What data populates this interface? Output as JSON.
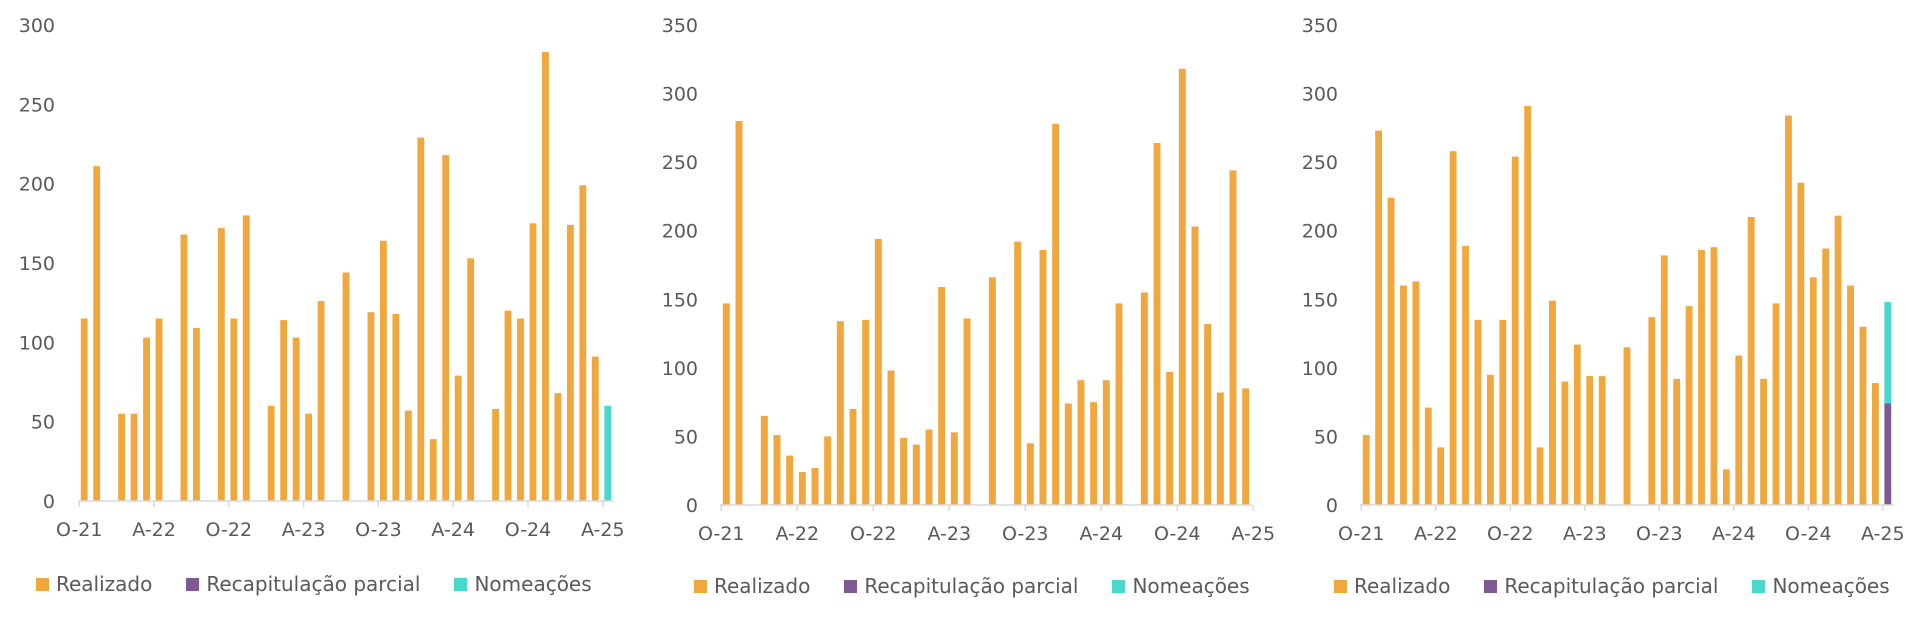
{
  "colors": {
    "realizado": "#f0a83e",
    "recapitulacao": "#7e5a94",
    "nomeacoes": "#48d8cd",
    "axis": "#d9d9d9",
    "text": "#595959"
  },
  "legend_labels": {
    "realizado": "Realizado",
    "recapitulacao": "Recapitulação parcial",
    "nomeacoes": "Nomeações"
  },
  "chart_data": [
    {
      "type": "bar",
      "stacked": true,
      "x_tick_labels": [
        "O-21",
        "A-22",
        "O-22",
        "A-23",
        "O-23",
        "A-24",
        "O-24",
        "A-25"
      ],
      "ylim": [
        0,
        300
      ],
      "y_ticks": [
        0,
        50,
        100,
        150,
        200,
        250,
        300
      ],
      "legend": [
        "Realizado",
        "Recapitulação parcial",
        "Nomeações"
      ],
      "legend_position": "bottom",
      "series": [
        {
          "name": "Realizado",
          "values": [
            115,
            211,
            0,
            55,
            55,
            103,
            115,
            0,
            168,
            109,
            0,
            172,
            115,
            180,
            0,
            60,
            114,
            103,
            55,
            126,
            0,
            144,
            0,
            119,
            164,
            118,
            57,
            229,
            39,
            218,
            79,
            153,
            0,
            58,
            120,
            115,
            175,
            283,
            68,
            174,
            199,
            91,
            0
          ]
        },
        {
          "name": "Recapitulação parcial",
          "values": [
            0,
            0,
            0,
            0,
            0,
            0,
            0,
            0,
            0,
            0,
            0,
            0,
            0,
            0,
            0,
            0,
            0,
            0,
            0,
            0,
            0,
            0,
            0,
            0,
            0,
            0,
            0,
            0,
            0,
            0,
            0,
            0,
            0,
            0,
            0,
            0,
            0,
            0,
            0,
            0,
            0,
            0,
            0
          ]
        },
        {
          "name": "Nomeações",
          "values": [
            0,
            0,
            0,
            0,
            0,
            0,
            0,
            0,
            0,
            0,
            0,
            0,
            0,
            0,
            0,
            0,
            0,
            0,
            0,
            0,
            0,
            0,
            0,
            0,
            0,
            0,
            0,
            0,
            0,
            0,
            0,
            0,
            0,
            0,
            0,
            0,
            0,
            0,
            0,
            0,
            0,
            0,
            60
          ]
        }
      ]
    },
    {
      "type": "bar",
      "stacked": true,
      "x_tick_labels": [
        "O-21",
        "A-22",
        "O-22",
        "A-23",
        "O-23",
        "A-24",
        "O-24",
        "A-25"
      ],
      "ylim": [
        0,
        350
      ],
      "y_ticks": [
        0,
        50,
        100,
        150,
        200,
        250,
        300,
        350
      ],
      "legend": [
        "Realizado",
        "Recapitulação parcial",
        "Nomeações"
      ],
      "legend_position": "bottom",
      "series": [
        {
          "name": "Realizado",
          "values": [
            147,
            280,
            0,
            65,
            51,
            36,
            24,
            27,
            50,
            134,
            70,
            135,
            194,
            98,
            49,
            44,
            55,
            159,
            53,
            136,
            0,
            166,
            0,
            192,
            45,
            186,
            278,
            74,
            91,
            75,
            91,
            147,
            0,
            155,
            264,
            97,
            318,
            203,
            132,
            82,
            244,
            85
          ]
        },
        {
          "name": "Recapitulação parcial",
          "values": [
            0,
            0,
            0,
            0,
            0,
            0,
            0,
            0,
            0,
            0,
            0,
            0,
            0,
            0,
            0,
            0,
            0,
            0,
            0,
            0,
            0,
            0,
            0,
            0,
            0,
            0,
            0,
            0,
            0,
            0,
            0,
            0,
            0,
            0,
            0,
            0,
            0,
            0,
            0,
            0,
            0,
            0
          ]
        },
        {
          "name": "Nomeações",
          "values": [
            0,
            0,
            0,
            0,
            0,
            0,
            0,
            0,
            0,
            0,
            0,
            0,
            0,
            0,
            0,
            0,
            0,
            0,
            0,
            0,
            0,
            0,
            0,
            0,
            0,
            0,
            0,
            0,
            0,
            0,
            0,
            0,
            0,
            0,
            0,
            0,
            0,
            0,
            0,
            0,
            0,
            0
          ]
        }
      ]
    },
    {
      "type": "bar",
      "stacked": true,
      "x_tick_labels": [
        "O-21",
        "A-22",
        "O-22",
        "A-23",
        "O-23",
        "A-24",
        "O-24",
        "A-25"
      ],
      "ylim": [
        0,
        350
      ],
      "y_ticks": [
        0,
        50,
        100,
        150,
        200,
        250,
        300,
        350
      ],
      "legend": [
        "Realizado",
        "Recapitulação parcial",
        "Nomeações"
      ],
      "legend_position": "bottom",
      "series": [
        {
          "name": "Realizado",
          "values": [
            51,
            273,
            224,
            160,
            163,
            71,
            42,
            258,
            189,
            135,
            95,
            135,
            254,
            291,
            42,
            149,
            90,
            117,
            94,
            94,
            0,
            115,
            0,
            137,
            182,
            92,
            145,
            186,
            188,
            26,
            109,
            210,
            92,
            147,
            284,
            235,
            166,
            187,
            211,
            160,
            130,
            89,
            0
          ]
        },
        {
          "name": "Recapitulação parcial",
          "values": [
            0,
            0,
            0,
            0,
            0,
            0,
            0,
            0,
            0,
            0,
            0,
            0,
            0,
            0,
            0,
            0,
            0,
            0,
            0,
            0,
            0,
            0,
            0,
            0,
            0,
            0,
            0,
            0,
            0,
            0,
            0,
            0,
            0,
            0,
            0,
            0,
            0,
            0,
            0,
            0,
            0,
            0,
            74
          ]
        },
        {
          "name": "Nomeações",
          "values": [
            0,
            0,
            0,
            0,
            0,
            0,
            0,
            0,
            0,
            0,
            0,
            0,
            0,
            0,
            0,
            0,
            0,
            0,
            0,
            0,
            0,
            0,
            0,
            0,
            0,
            0,
            0,
            0,
            0,
            0,
            0,
            0,
            0,
            0,
            0,
            0,
            0,
            0,
            0,
            0,
            0,
            0,
            74
          ]
        }
      ]
    }
  ]
}
